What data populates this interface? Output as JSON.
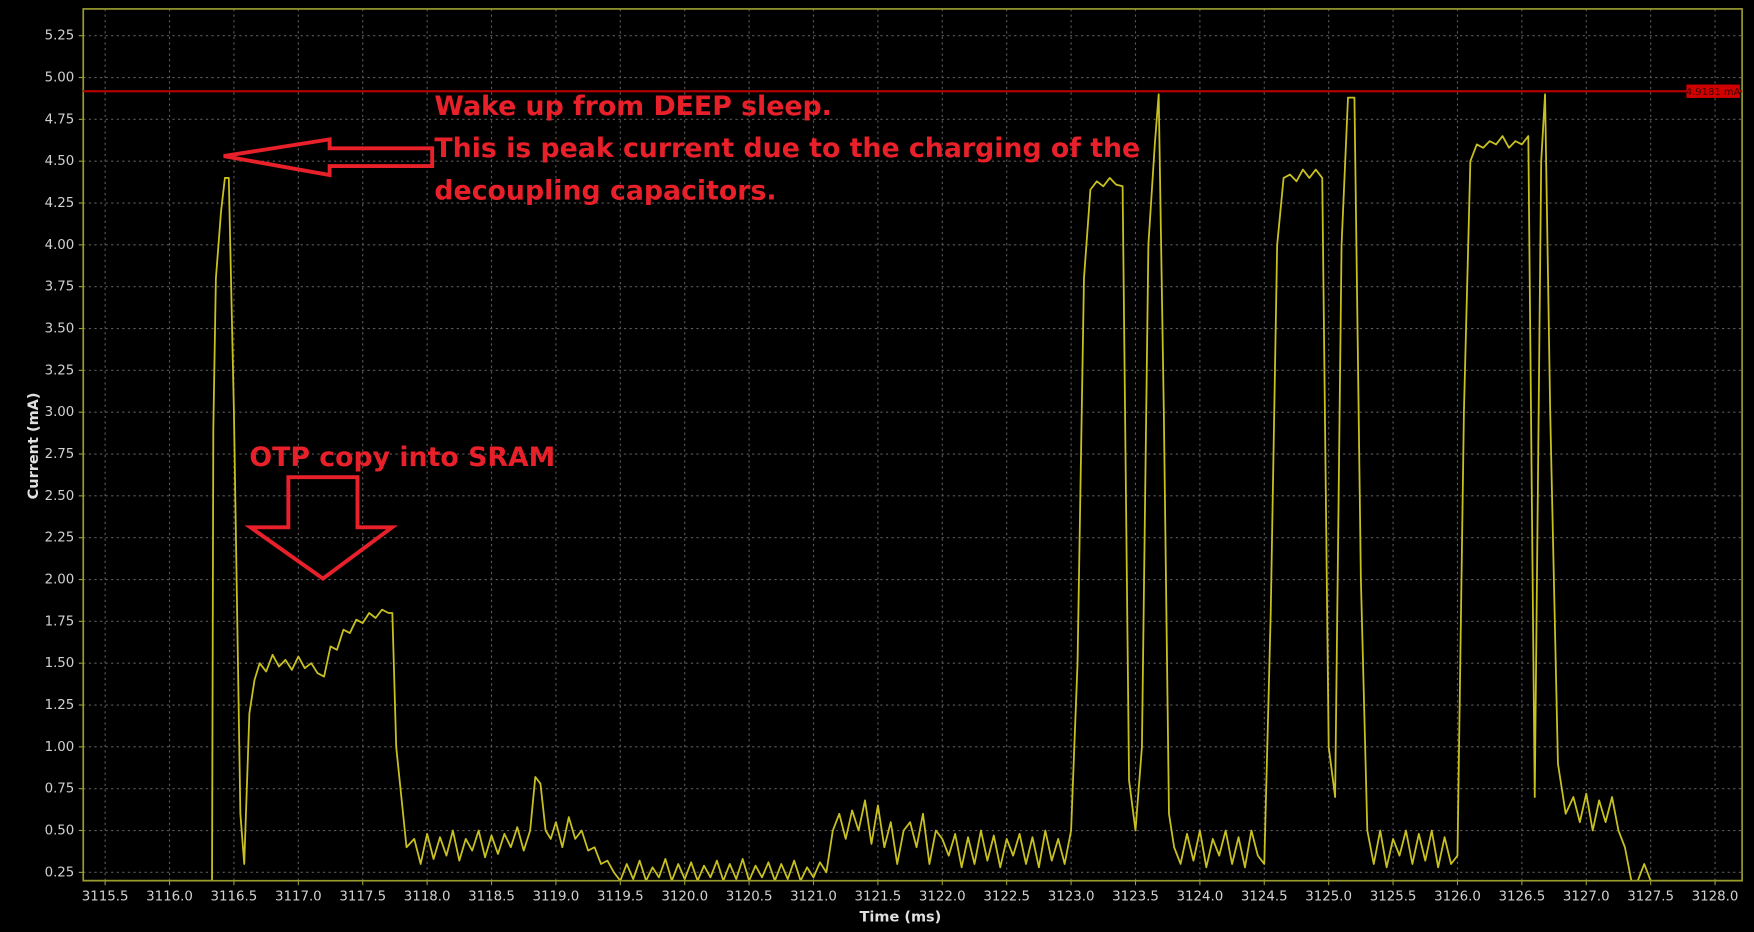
{
  "chart_data": {
    "type": "line",
    "xlabel": "Time (ms)",
    "ylabel": "Current (mA)",
    "color": "#c8c020",
    "grid": true,
    "xlim": [
      3115.33,
      3128.21
    ],
    "ylim": [
      0.2,
      5.41
    ],
    "xticks": [
      3115.5,
      {
        "value": 3116,
        "label": "3116.0"
      },
      3116.5,
      {
        "value": 3117,
        "label": "3117.0"
      },
      3117.5,
      {
        "value": 3118,
        "label": "3118.0"
      },
      3118.5,
      {
        "value": 3119,
        "label": "3119.0"
      },
      3119.5,
      {
        "value": 3120,
        "label": "3120.0"
      },
      3120.5,
      {
        "value": 3121,
        "label": "3121.0"
      },
      3121.5,
      {
        "value": 3122,
        "label": "3122.0"
      },
      3122.5,
      {
        "value": 3123,
        "label": "3123.0"
      },
      3123.5,
      {
        "value": 3124,
        "label": "3124.0"
      },
      3124.5,
      {
        "value": 3125,
        "label": "3125.0"
      },
      3125.5,
      {
        "value": 3126,
        "label": "3126.0"
      },
      3126.5,
      {
        "value": 3127,
        "label": "3127.0"
      },
      3127.5,
      {
        "value": 3128,
        "label": "3128.0"
      }
    ],
    "yticks": [
      0.25,
      {
        "value": 0.5,
        "label": "0.50"
      },
      0.75,
      {
        "value": 1,
        "label": "1.00"
      },
      1.25,
      {
        "value": 1.5,
        "label": "1.50"
      },
      1.75,
      {
        "value": 2,
        "label": "2.00"
      },
      2.25,
      {
        "value": 2.5,
        "label": "2.50"
      },
      2.75,
      {
        "value": 3,
        "label": "3.00"
      },
      3.25,
      {
        "value": 3.5,
        "label": "3.50"
      },
      3.75,
      {
        "value": 4,
        "label": "4.00"
      },
      4.25,
      {
        "value": 4.5,
        "label": "4.50"
      },
      4.75,
      {
        "value": 5,
        "label": "5.00"
      },
      5.25
    ],
    "threshold": {
      "value": 4.9181,
      "label": "4.9181 mA",
      "color": "#b00000"
    },
    "annotations": [
      "Wake up from DEEP sleep.",
      "This is peak current due to the charging of the",
      "decoupling capacitors.",
      "OTP copy into SRAM"
    ],
    "x": [
      3115.33,
      3116.33,
      3116.34,
      3116.36,
      3116.4,
      3116.43,
      3116.46,
      3116.5,
      3116.55,
      3116.58,
      3116.62,
      3116.66,
      3116.7,
      3116.75,
      3116.8,
      3116.85,
      3116.9,
      3116.95,
      3117.0,
      3117.05,
      3117.1,
      3117.15,
      3117.2,
      3117.25,
      3117.3,
      3117.35,
      3117.4,
      3117.45,
      3117.5,
      3117.55,
      3117.6,
      3117.65,
      3117.7,
      3117.73,
      3117.76,
      3117.8,
      3117.84,
      3117.9,
      3117.95,
      3118.0,
      3118.05,
      3118.1,
      3118.15,
      3118.2,
      3118.25,
      3118.3,
      3118.35,
      3118.4,
      3118.45,
      3118.5,
      3118.55,
      3118.6,
      3118.65,
      3118.7,
      3118.75,
      3118.8,
      3118.84,
      3118.88,
      3118.92,
      3118.96,
      3119.0,
      3119.05,
      3119.1,
      3119.15,
      3119.2,
      3119.25,
      3119.3,
      3119.35,
      3119.4,
      3119.45,
      3119.5,
      3119.55,
      3119.6,
      3119.65,
      3119.7,
      3119.75,
      3119.8,
      3119.85,
      3119.9,
      3119.95,
      3120.0,
      3120.05,
      3120.1,
      3120.15,
      3120.2,
      3120.25,
      3120.3,
      3120.35,
      3120.4,
      3120.45,
      3120.5,
      3120.55,
      3120.6,
      3120.65,
      3120.7,
      3120.75,
      3120.8,
      3120.85,
      3120.9,
      3120.95,
      3121.0,
      3121.05,
      3121.1,
      3121.15,
      3121.2,
      3121.25,
      3121.3,
      3121.35,
      3121.4,
      3121.45,
      3121.5,
      3121.55,
      3121.6,
      3121.65,
      3121.7,
      3121.75,
      3121.8,
      3121.85,
      3121.9,
      3121.95,
      3122.0,
      3122.05,
      3122.1,
      3122.15,
      3122.2,
      3122.25,
      3122.3,
      3122.35,
      3122.4,
      3122.45,
      3122.5,
      3122.55,
      3122.6,
      3122.65,
      3122.7,
      3122.75,
      3122.8,
      3122.85,
      3122.9,
      3122.95,
      3123.0,
      3123.05,
      3123.1,
      3123.15,
      3123.2,
      3123.25,
      3123.3,
      3123.35,
      3123.4,
      3123.45,
      3123.5,
      3123.55,
      3123.6,
      3123.65,
      3123.68,
      3123.72,
      3123.76,
      3123.8,
      3123.85,
      3123.9,
      3123.95,
      3124.0,
      3124.05,
      3124.1,
      3124.15,
      3124.2,
      3124.25,
      3124.3,
      3124.35,
      3124.4,
      3124.45,
      3124.5,
      3124.55,
      3124.6,
      3124.65,
      3124.7,
      3124.75,
      3124.8,
      3124.85,
      3124.9,
      3124.95,
      3125.0,
      3125.05,
      3125.1,
      3125.15,
      3125.2,
      3125.25,
      3125.3,
      3125.35,
      3125.4,
      3125.45,
      3125.5,
      3125.55,
      3125.6,
      3125.65,
      3125.7,
      3125.75,
      3125.8,
      3125.85,
      3125.9,
      3125.95,
      3126.0,
      3126.05,
      3126.1,
      3126.15,
      3126.2,
      3126.25,
      3126.3,
      3126.35,
      3126.4,
      3126.45,
      3126.5,
      3126.55,
      3126.6,
      3126.65,
      3126.68,
      3126.72,
      3126.78,
      3126.84,
      3126.9,
      3126.95,
      3127.0,
      3127.05,
      3127.1,
      3127.15,
      3127.2,
      3127.25,
      3127.3,
      3127.35,
      3127.4,
      3127.45,
      3127.5,
      3128.21
    ],
    "values": [
      0.2,
      0.2,
      2.9,
      3.8,
      4.2,
      4.4,
      4.4,
      3.0,
      0.6,
      0.3,
      1.2,
      1.4,
      1.5,
      1.45,
      1.55,
      1.48,
      1.52,
      1.46,
      1.54,
      1.47,
      1.5,
      1.44,
      1.42,
      1.6,
      1.58,
      1.7,
      1.68,
      1.76,
      1.74,
      1.8,
      1.77,
      1.82,
      1.8,
      1.8,
      1.0,
      0.7,
      0.4,
      0.45,
      0.3,
      0.48,
      0.33,
      0.46,
      0.35,
      0.5,
      0.32,
      0.45,
      0.38,
      0.5,
      0.34,
      0.47,
      0.36,
      0.48,
      0.4,
      0.52,
      0.38,
      0.5,
      0.82,
      0.78,
      0.5,
      0.45,
      0.55,
      0.4,
      0.58,
      0.45,
      0.5,
      0.38,
      0.4,
      0.3,
      0.32,
      0.25,
      0.2,
      0.3,
      0.21,
      0.32,
      0.2,
      0.28,
      0.22,
      0.33,
      0.2,
      0.3,
      0.21,
      0.31,
      0.2,
      0.29,
      0.22,
      0.32,
      0.2,
      0.3,
      0.21,
      0.33,
      0.2,
      0.29,
      0.22,
      0.31,
      0.2,
      0.3,
      0.21,
      0.32,
      0.2,
      0.28,
      0.22,
      0.31,
      0.25,
      0.5,
      0.6,
      0.45,
      0.62,
      0.5,
      0.68,
      0.42,
      0.65,
      0.4,
      0.55,
      0.3,
      0.5,
      0.55,
      0.4,
      0.6,
      0.3,
      0.5,
      0.45,
      0.35,
      0.48,
      0.28,
      0.46,
      0.3,
      0.5,
      0.32,
      0.47,
      0.28,
      0.45,
      0.35,
      0.48,
      0.3,
      0.46,
      0.28,
      0.5,
      0.32,
      0.45,
      0.3,
      0.5,
      1.5,
      3.8,
      4.33,
      4.38,
      4.35,
      4.4,
      4.36,
      4.35,
      0.8,
      0.5,
      1.0,
      4.0,
      4.6,
      4.9,
      3.0,
      0.6,
      0.4,
      0.3,
      0.48,
      0.32,
      0.5,
      0.28,
      0.45,
      0.35,
      0.5,
      0.3,
      0.46,
      0.28,
      0.5,
      0.35,
      0.3,
      1.8,
      4.0,
      4.4,
      4.42,
      4.38,
      4.45,
      4.4,
      4.45,
      4.4,
      1.0,
      0.7,
      4.0,
      4.88,
      4.88,
      2.0,
      0.5,
      0.3,
      0.5,
      0.28,
      0.45,
      0.35,
      0.5,
      0.3,
      0.48,
      0.32,
      0.5,
      0.28,
      0.46,
      0.3,
      0.35,
      3.0,
      4.5,
      4.6,
      4.58,
      4.62,
      4.6,
      4.65,
      4.58,
      4.62,
      4.6,
      4.65,
      0.7,
      4.5,
      4.9,
      3.0,
      0.9,
      0.6,
      0.7,
      0.55,
      0.72,
      0.5,
      0.68,
      0.55,
      0.7,
      0.5,
      0.4,
      0.2,
      0.2,
      0.3,
      0.2,
      0.2
    ]
  }
}
